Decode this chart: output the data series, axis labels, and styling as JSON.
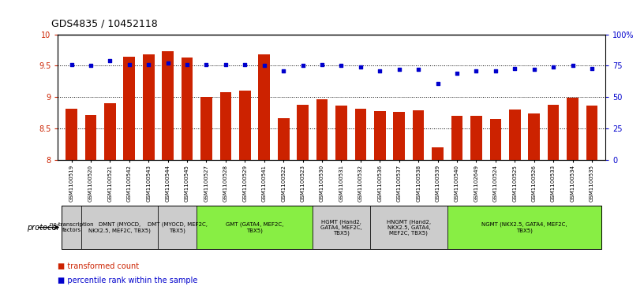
{
  "title": "GDS4835 / 10452118",
  "samples": [
    "GSM1100519",
    "GSM1100520",
    "GSM1100521",
    "GSM1100542",
    "GSM1100543",
    "GSM1100544",
    "GSM1100545",
    "GSM1100527",
    "GSM1100528",
    "GSM1100529",
    "GSM1100541",
    "GSM1100522",
    "GSM1100523",
    "GSM1100530",
    "GSM1100531",
    "GSM1100532",
    "GSM1100536",
    "GSM1100537",
    "GSM1100538",
    "GSM1100539",
    "GSM1100540",
    "GSM1102649",
    "GSM1100524",
    "GSM1100525",
    "GSM1100526",
    "GSM1100533",
    "GSM1100534",
    "GSM1100535"
  ],
  "bar_values": [
    8.82,
    8.72,
    8.9,
    9.65,
    9.68,
    9.73,
    9.63,
    9.0,
    9.08,
    9.1,
    9.68,
    8.67,
    8.88,
    8.97,
    8.87,
    8.82,
    8.78,
    8.77,
    8.79,
    8.2,
    8.7,
    8.7,
    8.65,
    8.8,
    8.74,
    8.88,
    8.99,
    8.87
  ],
  "dot_values": [
    76,
    75,
    79,
    76,
    76,
    77,
    76,
    76,
    76,
    76,
    75,
    71,
    75,
    76,
    75,
    74,
    71,
    72,
    72,
    61,
    69,
    71,
    71,
    73,
    72,
    74,
    75,
    73
  ],
  "bar_color": "#cc2200",
  "dot_color": "#0000cc",
  "ylim_left": [
    8.0,
    10.0
  ],
  "ylim_right": [
    0,
    100
  ],
  "yticks_left": [
    8.0,
    8.5,
    9.0,
    9.5,
    10.0
  ],
  "yticks_right": [
    0,
    25,
    50,
    75,
    100
  ],
  "ytick_labels_right": [
    "0",
    "25",
    "50",
    "75",
    "100%"
  ],
  "grid_lines": [
    8.5,
    9.0,
    9.5
  ],
  "group_sample_map": [
    [
      0
    ],
    [
      1,
      2,
      3,
      4
    ],
    [
      5,
      6
    ],
    [
      7,
      8,
      9,
      10,
      11,
      12
    ],
    [
      13,
      14,
      15
    ],
    [
      16,
      17,
      18,
      19
    ],
    [
      20,
      21,
      22,
      23,
      24,
      25,
      26,
      27
    ]
  ],
  "group_labels": [
    "no transcription\nfactors",
    "DMNT (MYOCD,\nNKX2.5, MEF2C, TBX5)",
    "DMT (MYOCD, MEF2C,\nTBX5)",
    "GMT (GATA4, MEF2C,\nTBX5)",
    "HGMT (Hand2,\nGATA4, MEF2C,\nTBX5)",
    "HNGMT (Hand2,\nNKX2.5, GATA4,\nMEF2C, TBX5)",
    "NGMT (NKX2.5, GATA4, MEF2C,\nTBX5)"
  ],
  "group_colors": [
    "#cccccc",
    "#cccccc",
    "#cccccc",
    "#88ee44",
    "#cccccc",
    "#cccccc",
    "#88ee44"
  ],
  "background_color": "#ffffff"
}
